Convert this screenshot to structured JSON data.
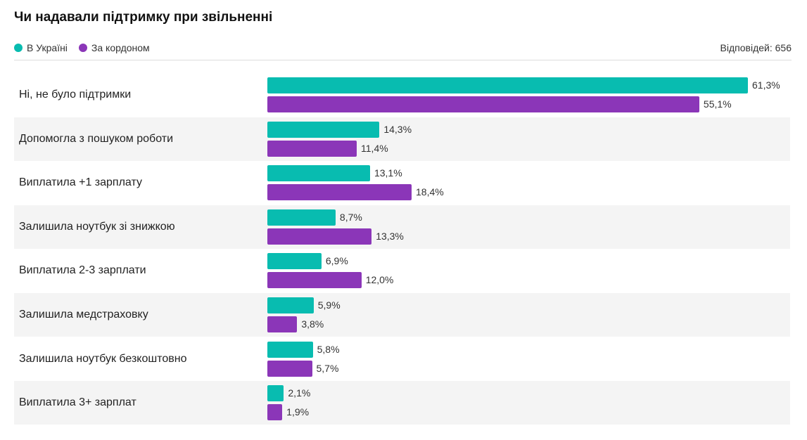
{
  "header": {
    "title": "Чи надавали підтримку при звільненні",
    "responses": "Відповідей: 656"
  },
  "colors": {
    "ukraine": "#08bcb0",
    "abroad": "#8b36b8"
  },
  "chart_data": {
    "type": "bar",
    "orientation": "horizontal",
    "title": "Чи надавали підтримку при звільненні",
    "categories": [
      "Ні, не було підтримки",
      "Допомогла з пошуком роботи",
      "Виплатила +1 зарплату",
      "Залишила ноутбук зі знижкою",
      "Виплатила 2-3 зарплати",
      "Залишила медстраховку",
      "Залишила ноутбук безкоштовно",
      "Виплатила 3+ зарплат"
    ],
    "series": [
      {
        "name": "В Україні",
        "color": "#08bcb0",
        "values": [
          61.3,
          14.3,
          13.1,
          8.7,
          6.9,
          5.9,
          5.8,
          2.1
        ],
        "labels": [
          "61,3%",
          "14,3%",
          "13,1%",
          "8,7%",
          "6,9%",
          "5,9%",
          "5,8%",
          "2,1%"
        ]
      },
      {
        "name": "За кордоном",
        "color": "#8b36b8",
        "values": [
          55.1,
          11.4,
          18.4,
          13.3,
          12.0,
          3.8,
          5.7,
          1.9
        ],
        "labels": [
          "55,1%",
          "11,4%",
          "18,4%",
          "13,3%",
          "12,0%",
          "3,8%",
          "5,7%",
          "1,9%"
        ]
      }
    ],
    "unit": "%",
    "xlim": [
      0,
      61.3
    ],
    "legend": "top-left",
    "grid": false
  }
}
